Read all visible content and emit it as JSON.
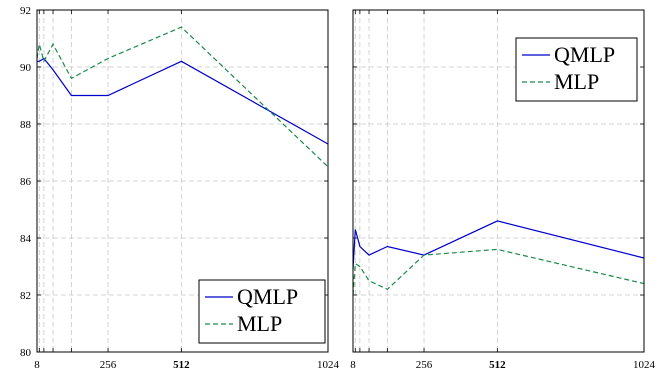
{
  "chart_data": [
    {
      "type": "line",
      "x": [
        8,
        16,
        32,
        64,
        128,
        256,
        512,
        1024
      ],
      "xticks": [
        "8",
        "256",
        "512",
        "1024"
      ],
      "bold_xticks": [
        "512"
      ],
      "ylim": [
        80,
        92
      ],
      "yticks": [
        "80",
        "82",
        "84",
        "86",
        "88",
        "90",
        "92"
      ],
      "grid": true,
      "legend_position": "bottom-right",
      "series": [
        {
          "name": "QMLP",
          "color": "#0000cc",
          "dash": "solid",
          "values": [
            90.2,
            90.2,
            90.3,
            89.9,
            89.0,
            89.0,
            90.2,
            87.3
          ]
        },
        {
          "name": "MLP",
          "color": "#1a8a4a",
          "dash": "dashed",
          "values": [
            90.3,
            90.8,
            90.2,
            90.8,
            89.6,
            90.3,
            91.4,
            86.5
          ]
        }
      ]
    },
    {
      "type": "line",
      "x": [
        8,
        16,
        32,
        64,
        128,
        256,
        512,
        1024
      ],
      "xticks": [
        "8",
        "256",
        "512",
        "1024"
      ],
      "bold_xticks": [
        "512"
      ],
      "ylim": [
        80,
        92
      ],
      "yticks": [],
      "grid": true,
      "legend_position": "top-right",
      "series": [
        {
          "name": "QMLP",
          "color": "#0000cc",
          "dash": "solid",
          "values": [
            82.9,
            84.3,
            83.7,
            83.4,
            83.7,
            83.4,
            84.6,
            83.3
          ]
        },
        {
          "name": "MLP",
          "color": "#1a8a4a",
          "dash": "dashed",
          "values": [
            82.0,
            83.1,
            83.0,
            82.5,
            82.2,
            83.4,
            83.6,
            82.4
          ]
        }
      ]
    }
  ]
}
